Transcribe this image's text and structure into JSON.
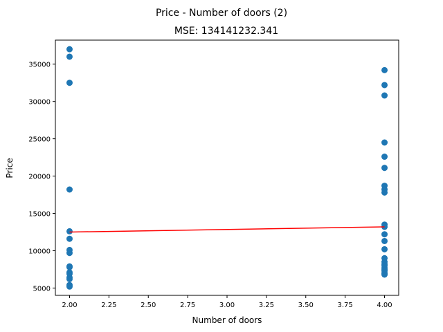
{
  "chart_data": {
    "type": "scatter",
    "suptitle": "Price - Number of doors (2)",
    "title": "MSE: 134141232.341",
    "xlabel": "Number of doors",
    "ylabel": "Price",
    "xlim": [
      1.91,
      4.09
    ],
    "ylim": [
      4020,
      38220
    ],
    "xticks": [
      "2.00",
      "2.25",
      "2.50",
      "2.75",
      "3.00",
      "3.25",
      "3.50",
      "3.75",
      "4.00"
    ],
    "yticks": [
      "5000",
      "10000",
      "15000",
      "20000",
      "25000",
      "30000",
      "35000"
    ],
    "grid": false,
    "points": {
      "color": "#1f77b4",
      "x": [
        2,
        2,
        2,
        2,
        2,
        2,
        2,
        2,
        2,
        2,
        2,
        2,
        2,
        2,
        2,
        2,
        4,
        4,
        4,
        4,
        4,
        4,
        4,
        4,
        4,
        4,
        4,
        4,
        4,
        4,
        4,
        4,
        4,
        4,
        4,
        4,
        4,
        4,
        4,
        4
      ],
      "y": [
        37000,
        36000,
        32500,
        18200,
        12600,
        11600,
        10100,
        9700,
        7900,
        7800,
        7100,
        6900,
        6400,
        6200,
        5400,
        5200,
        34200,
        32200,
        30800,
        24500,
        22600,
        21100,
        18700,
        18200,
        17800,
        13500,
        13200,
        12200,
        11300,
        10200,
        9000,
        8500,
        8000,
        7700,
        7300,
        6800,
        7500,
        8200,
        6900,
        7000
      ]
    },
    "regression": {
      "color": "#ff0000",
      "x": [
        2,
        4
      ],
      "y": [
        12500,
        13200
      ]
    }
  }
}
